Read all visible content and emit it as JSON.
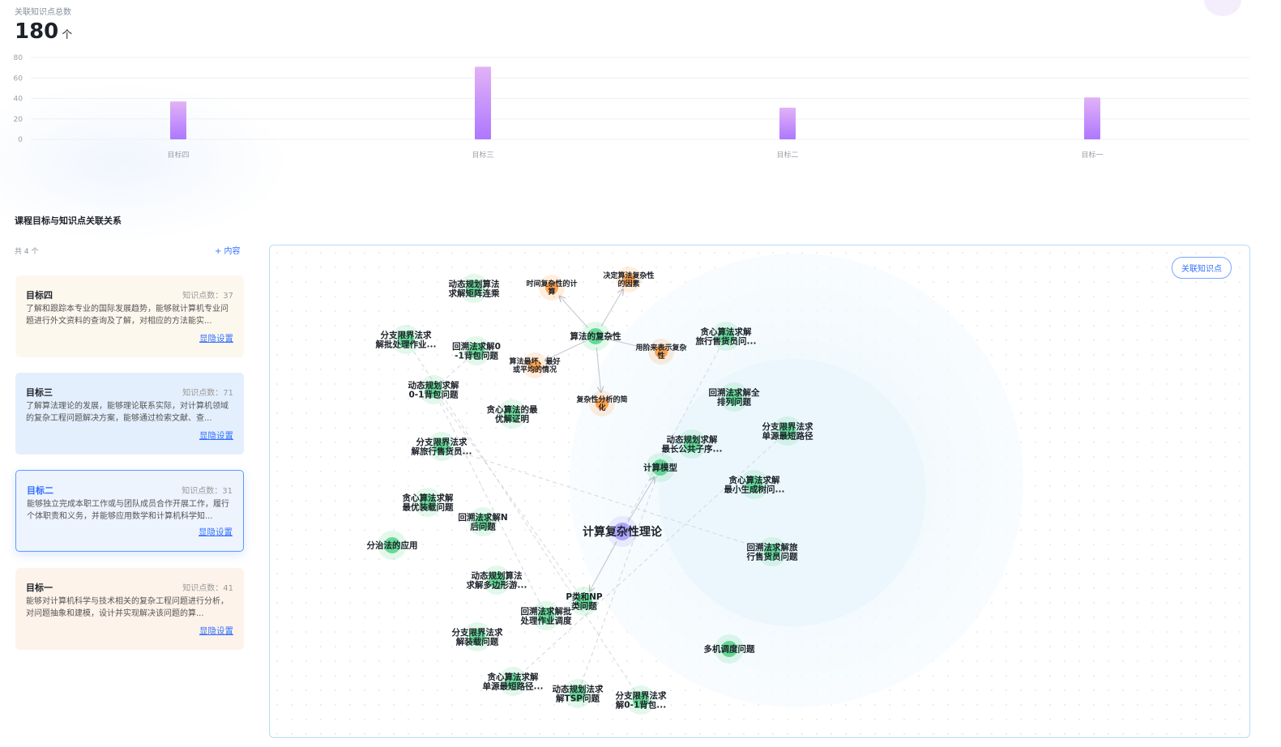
{
  "summary": {
    "label": "关联知识点总数",
    "value": "180",
    "unit": "个"
  },
  "chart_data": {
    "type": "bar",
    "categories": [
      "目标四",
      "目标三",
      "目标二",
      "目标一"
    ],
    "values": [
      37,
      71,
      31,
      41
    ],
    "ylim": [
      0,
      80
    ],
    "yticks": [
      0,
      20,
      40,
      60,
      80
    ],
    "grid": true,
    "bar_color": [
      "#e2b2f6",
      "#ad78ff"
    ]
  },
  "section": {
    "title": "课程目标与知识点关联关系",
    "count": "共 4 个",
    "add_label": "+ 内容"
  },
  "goals": [
    {
      "title": "目标四",
      "count": "知识点数：37",
      "desc": "了解和跟踪本专业的国际发展趋势，能够就计算机专业问题进行外文资料的查询及了解，对相应的方法能实...",
      "link": "显隐设置",
      "bg": "#fdf8ee"
    },
    {
      "title": "目标三",
      "count": "知识点数：71",
      "desc": "了解算法理论的发展，能够理论联系实际，对计算机领域的复杂工程问题解决方案，能够通过检索文献、查...",
      "link": "显隐设置",
      "bg": "#e3effd"
    },
    {
      "title": "目标二",
      "count": "知识点数：31",
      "desc": "能够独立完成本职工作或与团队成员合作开展工作，履行个体职责和义务，并能够应用数学和计算机科学知...",
      "link": "显隐设置",
      "bg": "#edf4fe",
      "active": true
    },
    {
      "title": "目标一",
      "count": "知识点数：41",
      "desc": "能够对计算机科学与技术相关的复杂工程问题进行分析，对问题抽象和建模，设计并实现解决该问题的算...",
      "link": "显隐设置",
      "bg": "#fef3ea"
    }
  ],
  "graph": {
    "button": "关联知识点",
    "colors": {
      "root": "#9b8cff",
      "topic": "#3ccf7a",
      "leaf": "#ff8a1f"
    },
    "nodes": [
      {
        "label": [
          "计算复杂性理论"
        ],
        "type": "root"
      },
      {
        "label": [
          "算法的复杂性"
        ],
        "type": "topic"
      },
      {
        "label": [
          "计算模型"
        ],
        "type": "topic"
      },
      {
        "label": [
          "P类和NP",
          "类问题"
        ],
        "type": "topic"
      },
      {
        "label": [
          "时间复杂性的计",
          "算"
        ],
        "type": "leaf"
      },
      {
        "label": [
          "决定算法复杂性",
          "的因素"
        ],
        "type": "leaf"
      },
      {
        "label": [
          "用阶来表示复杂",
          "性"
        ],
        "type": "leaf"
      },
      {
        "label": [
          "算法最坏、最好",
          "或平均的情况"
        ],
        "type": "leaf"
      },
      {
        "label": [
          "复杂性分析的简",
          "化"
        ],
        "type": "leaf"
      },
      {
        "label": [
          "动态规划算法",
          "求解矩阵连乘"
        ],
        "type": "topic"
      },
      {
        "label": [
          "分支限界法求",
          "解批处理作业..."
        ],
        "type": "topic"
      },
      {
        "label": [
          "回溯法求解0",
          "-1背包问题"
        ],
        "type": "topic"
      },
      {
        "label": [
          "动态规划求解",
          "0-1背包问题"
        ],
        "type": "topic"
      },
      {
        "label": [
          "贪心算法的最",
          "优解证明"
        ],
        "type": "topic"
      },
      {
        "label": [
          "贪心算法求解",
          "旅行售货员问..."
        ],
        "type": "topic"
      },
      {
        "label": [
          "回溯法求解全",
          "排列问题"
        ],
        "type": "topic"
      },
      {
        "label": [
          "分支限界法求",
          "单源最短路径"
        ],
        "type": "topic"
      },
      {
        "label": [
          "动态规划求解",
          "最长公共子序..."
        ],
        "type": "topic"
      },
      {
        "label": [
          "贪心算法求解",
          "最小生成树问..."
        ],
        "type": "topic"
      },
      {
        "label": [
          "分支限界法求",
          "解旅行售货员..."
        ],
        "type": "topic"
      },
      {
        "label": [
          "贪心算法求解",
          "最优装载问题"
        ],
        "type": "topic"
      },
      {
        "label": [
          "回溯法求解N",
          "后问题"
        ],
        "type": "topic"
      },
      {
        "label": [
          "分治法的应用"
        ],
        "type": "topic"
      },
      {
        "label": [
          "回溯法求解旅",
          "行售货员问题"
        ],
        "type": "topic"
      },
      {
        "label": [
          "动态规划算法",
          "求解多边形游..."
        ],
        "type": "topic"
      },
      {
        "label": [
          "回溯法求解批",
          "处理作业调度"
        ],
        "type": "topic"
      },
      {
        "label": [
          "分支限界法求",
          "解装载问题"
        ],
        "type": "topic"
      },
      {
        "label": [
          "多机调度问题"
        ],
        "type": "topic"
      },
      {
        "label": [
          "贪心算法求解",
          "单源最短路径..."
        ],
        "type": "topic"
      },
      {
        "label": [
          "动态规划法求",
          "解TSP问题"
        ],
        "type": "topic"
      },
      {
        "label": [
          "分支限界法求",
          "解0-1背包..."
        ],
        "type": "topic"
      }
    ],
    "links": [
      [
        0,
        2,
        "solid"
      ],
      [
        0,
        3,
        "solid"
      ],
      [
        1,
        4,
        "solid"
      ],
      [
        1,
        5,
        "solid"
      ],
      [
        1,
        6,
        "solid"
      ],
      [
        1,
        7,
        "solid"
      ],
      [
        1,
        8,
        "solid"
      ],
      [
        14,
        3,
        "dashed"
      ],
      [
        19,
        23,
        "dashed"
      ],
      [
        10,
        30,
        "dashed"
      ],
      [
        12,
        25,
        "dashed"
      ],
      [
        16,
        28,
        "dashed"
      ],
      [
        11,
        12,
        "dashed"
      ],
      [
        2,
        29,
        "dashed"
      ],
      [
        12,
        3,
        "dashed"
      ]
    ]
  }
}
